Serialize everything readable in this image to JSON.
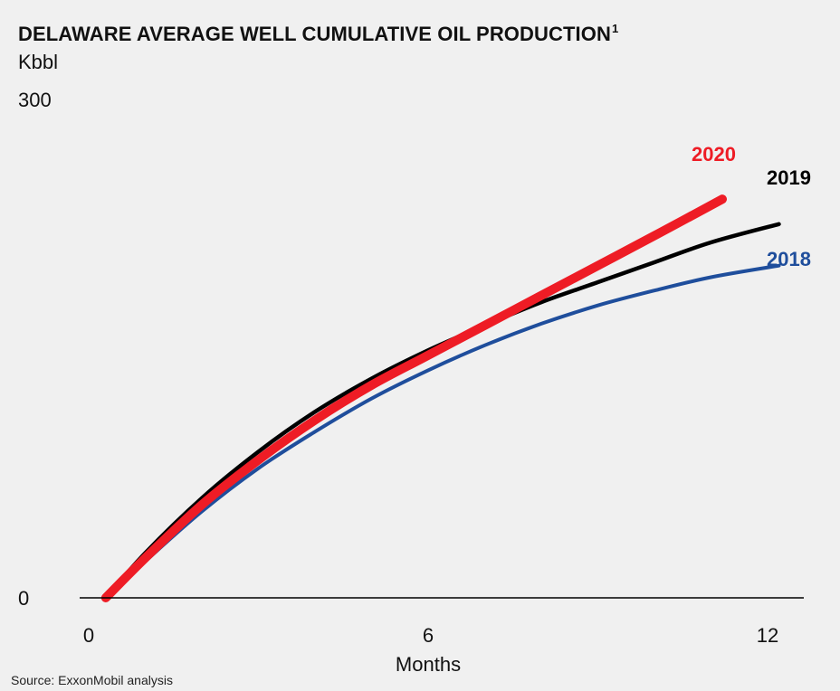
{
  "chart_data": {
    "type": "line",
    "title": "DELAWARE AVERAGE WELL CUMULATIVE OIL PRODUCTION",
    "title_footnote": "1",
    "ylabel": "Kbbl",
    "xlabel": "Months",
    "source": "Source: ExxonMobil analysis",
    "x_ticks": [
      "0",
      "6",
      "12"
    ],
    "y_ticks": [
      "0",
      "300"
    ],
    "xlim": [
      0,
      12
    ],
    "ylim": [
      0,
      300
    ],
    "grid": false,
    "series": [
      {
        "name": "2018",
        "color": "#1f4e9c",
        "x": [
          0.3,
          1,
          2,
          3,
          4,
          5,
          6,
          7,
          8,
          9,
          10,
          11,
          12.2
        ],
        "values": [
          0,
          22,
          52,
          78,
          100,
          120,
          137,
          152,
          165,
          176,
          185,
          193,
          200
        ]
      },
      {
        "name": "2019",
        "color": "#000000",
        "x": [
          0.3,
          1,
          2,
          3,
          4,
          5,
          6,
          7,
          8,
          9,
          10,
          11,
          12.2
        ],
        "values": [
          0,
          27,
          60,
          88,
          112,
          132,
          149,
          164,
          178,
          190,
          202,
          214,
          225
        ]
      },
      {
        "name": "2020",
        "color": "#ee1c25",
        "x": [
          0.3,
          1,
          2,
          3,
          4,
          5,
          6,
          7,
          8,
          9,
          10,
          11.2
        ],
        "values": [
          0,
          24,
          56,
          83,
          107,
          128,
          146,
          164,
          182,
          200,
          218,
          240
        ]
      }
    ]
  }
}
